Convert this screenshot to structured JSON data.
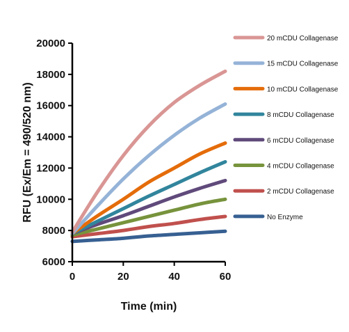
{
  "chart_data": {
    "type": "line",
    "title": "",
    "xlabel": "Time (min)",
    "ylabel": "RFU (Ex/Em = 490/520 nm)",
    "xlim": [
      0,
      60
    ],
    "ylim": [
      6000,
      20000
    ],
    "x_ticks": [
      0,
      20,
      40,
      60
    ],
    "y_ticks": [
      6000,
      8000,
      10000,
      12000,
      14000,
      16000,
      18000,
      20000
    ],
    "grid": false,
    "legend_position": "right",
    "x": [
      0,
      10,
      20,
      30,
      40,
      50,
      60
    ],
    "series": [
      {
        "name": "20 mCDU Collagenase",
        "color": "#d99694",
        "values": [
          7900,
          10500,
          12800,
          14700,
          16200,
          17300,
          18200
        ]
      },
      {
        "name": "15 mCDU Collagenase",
        "color": "#95b3d7",
        "values": [
          7800,
          9600,
          11300,
          12800,
          14100,
          15200,
          16100
        ]
      },
      {
        "name": "10 mCDU Collagenase",
        "color": "#e46c0a",
        "values": [
          7800,
          8950,
          10000,
          11100,
          12000,
          12900,
          13600
        ]
      },
      {
        "name": "8 mCDU Collagenase",
        "color": "#31859c",
        "values": [
          7800,
          8600,
          9400,
          10200,
          10950,
          11700,
          12400
        ]
      },
      {
        "name": "6 mCDU Collagenase",
        "color": "#604a7b",
        "values": [
          7800,
          8400,
          8950,
          9550,
          10150,
          10700,
          11200
        ]
      },
      {
        "name": "4 mCDU Collagenase",
        "color": "#77933c",
        "values": [
          7700,
          8100,
          8500,
          8900,
          9300,
          9700,
          10000
        ]
      },
      {
        "name": "2 mCDU Collagenase",
        "color": "#c0504d",
        "values": [
          7600,
          7800,
          8000,
          8250,
          8450,
          8700,
          8900
        ]
      },
      {
        "name": "No Enzyme",
        "color": "#376092",
        "values": [
          7300,
          7400,
          7500,
          7650,
          7750,
          7850,
          7950
        ]
      }
    ]
  }
}
